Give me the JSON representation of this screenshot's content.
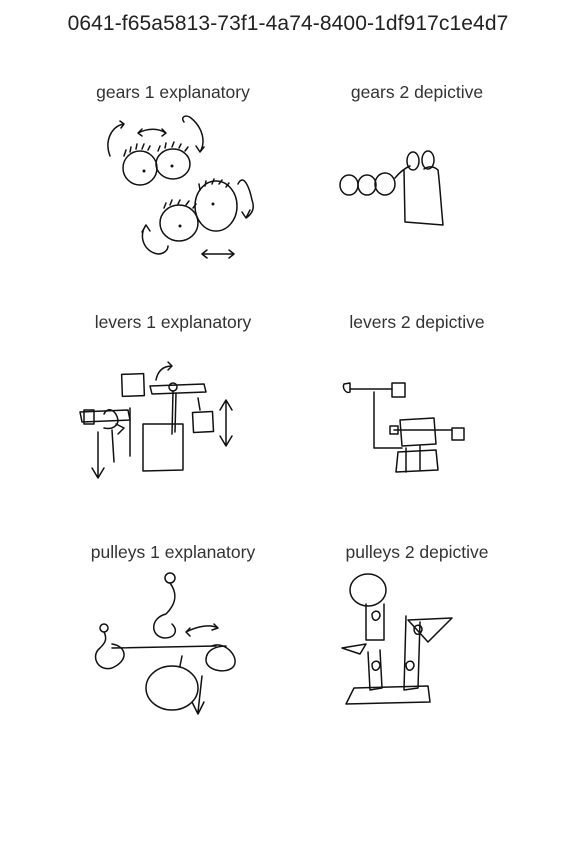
{
  "title": "0641-f65a5813-73f1-4a74-8400-1df917c1e4d7",
  "panels": [
    {
      "label": "gears 1 explanatory"
    },
    {
      "label": "gears 2 depictive"
    },
    {
      "label": "levers 1 explanatory"
    },
    {
      "label": "levers 2 depictive"
    },
    {
      "label": "pulleys 1 explanatory"
    },
    {
      "label": "pulleys 2 depictive"
    }
  ]
}
